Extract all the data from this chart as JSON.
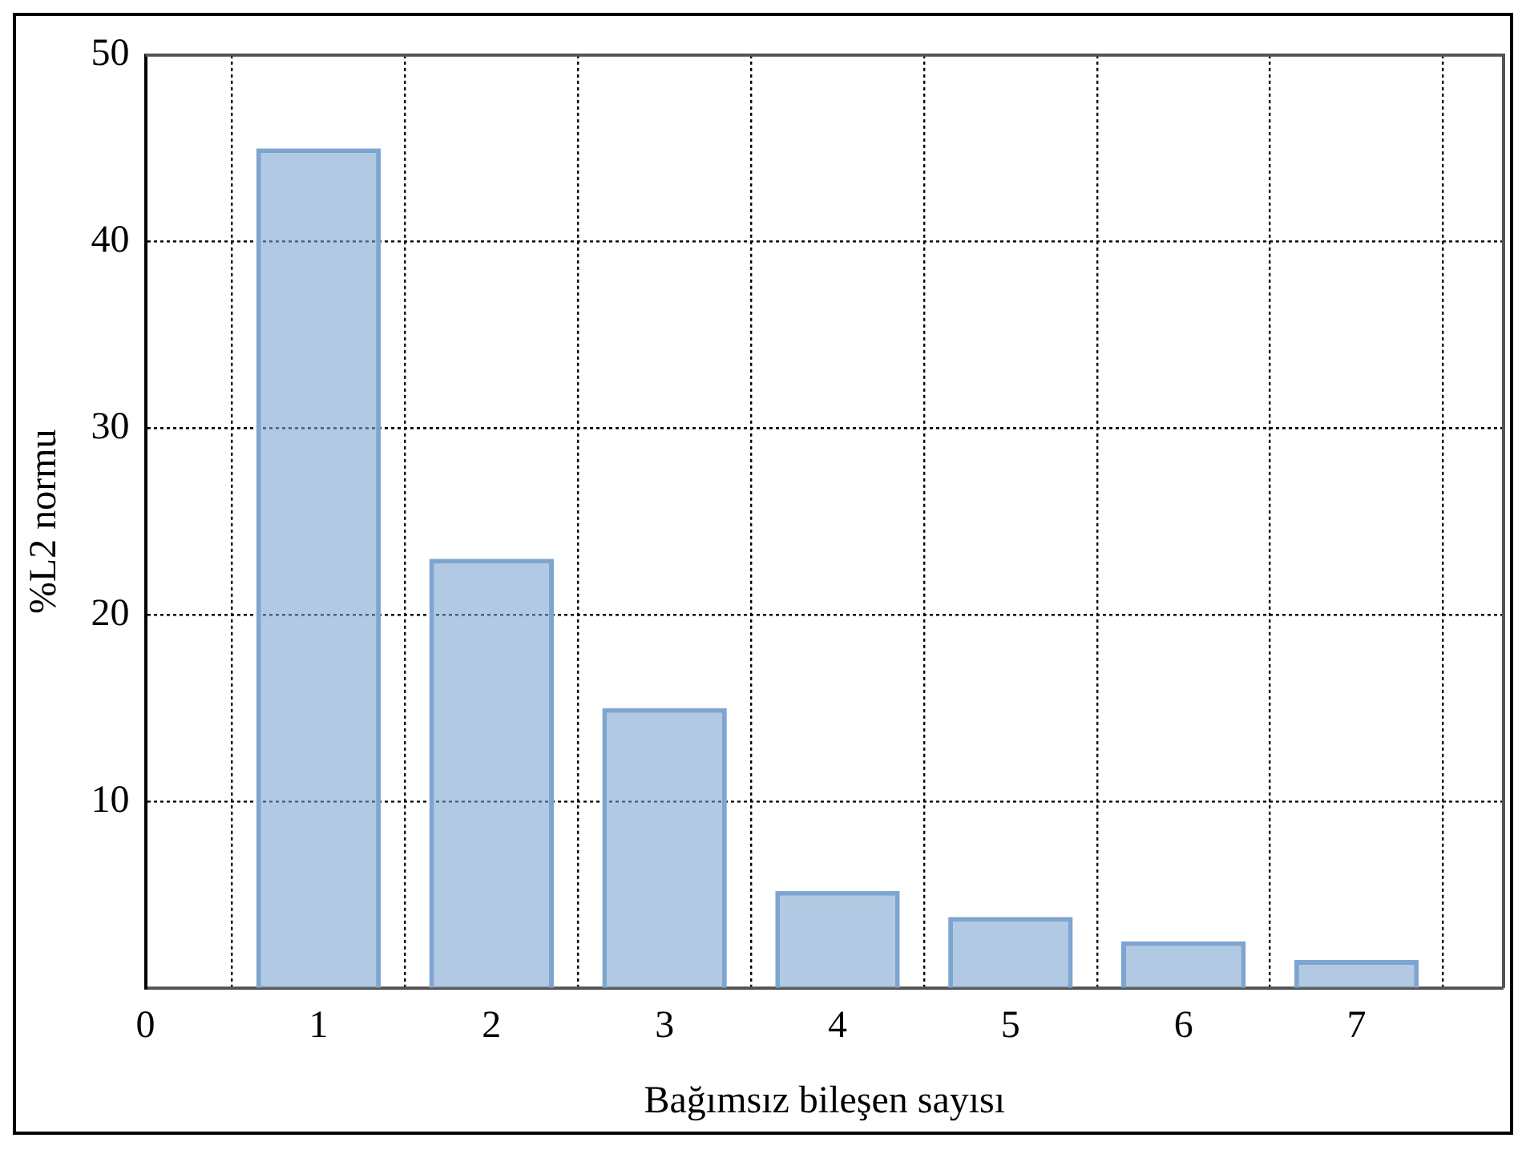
{
  "chart_data": {
    "type": "bar",
    "xlabel": "Bağımsız bileşen sayısı",
    "ylabel": "%L2 normu",
    "x": [
      1,
      2,
      3,
      4,
      5,
      6,
      7
    ],
    "values": [
      45,
      23,
      15,
      5.2,
      3.8,
      2.5,
      1.5
    ],
    "color": "#7da5cf",
    "xlim": [
      0,
      7.85
    ],
    "xticks": [
      0,
      1,
      2,
      3,
      4,
      5,
      6,
      7
    ],
    "ylim": [
      0,
      50
    ],
    "yticks": [
      10,
      20,
      30,
      40,
      50
    ],
    "grid": true,
    "legend": false
  }
}
